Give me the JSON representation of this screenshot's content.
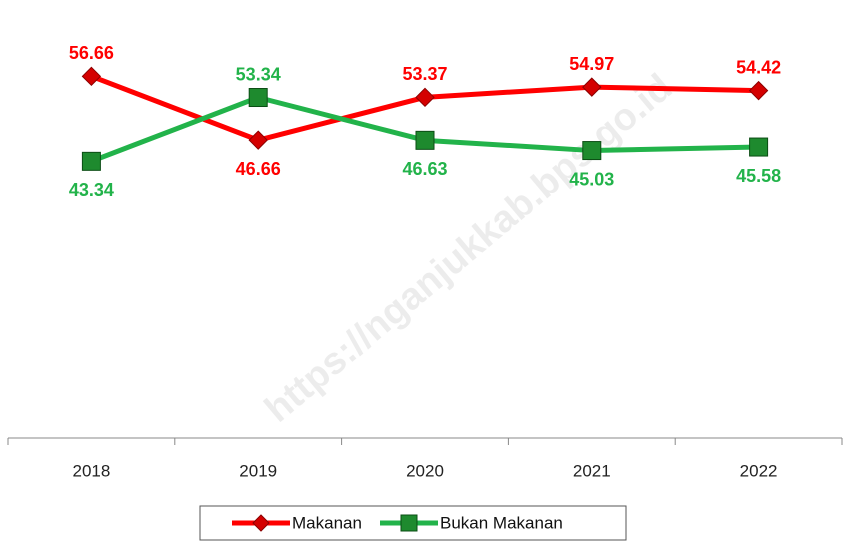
{
  "chart_data": {
    "type": "line",
    "watermark": "https://nganjukkab.bps.go.id",
    "categories": [
      "2018",
      "2019",
      "2020",
      "2021",
      "2022"
    ],
    "series": [
      {
        "name": "Makanan",
        "color": "#ff0000",
        "marker": "diamond",
        "values": [
          56.66,
          46.66,
          53.37,
          54.97,
          54.42
        ]
      },
      {
        "name": "Bukan Makanan",
        "color": "#22b34a",
        "marker": "square",
        "values": [
          43.34,
          53.34,
          46.63,
          45.03,
          45.58
        ]
      }
    ],
    "ylim": [
      0,
      60
    ],
    "legend": "bottom"
  }
}
